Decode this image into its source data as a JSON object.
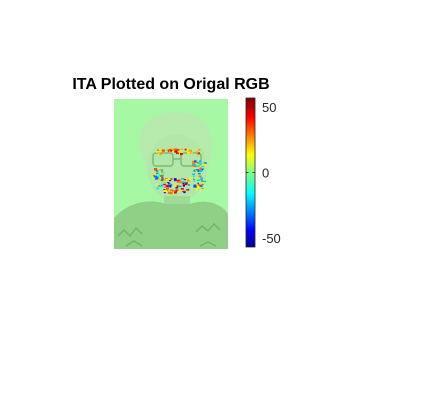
{
  "chart_data": {
    "type": "heatmap",
    "title": "ITA Plotted on Origal RGB",
    "colormap": "jet",
    "colorbar": {
      "clim": [
        -57,
        57
      ],
      "ticks": [
        50,
        0,
        -50
      ],
      "tick_labels": [
        "50",
        "0",
        "-50"
      ],
      "placement": "right"
    },
    "background_value": 0,
    "overlay_regions": [
      {
        "region": "eyeglasses",
        "values": [
          15,
          25,
          35,
          45
        ]
      },
      {
        "region": "left-cheek",
        "values": [
          -30,
          -15,
          10,
          20,
          35
        ]
      },
      {
        "region": "right-cheek",
        "values": [
          -35,
          -20,
          5,
          15,
          30
        ]
      },
      {
        "region": "lower-face",
        "values": [
          -45,
          -25,
          15,
          30,
          45
        ]
      }
    ]
  }
}
